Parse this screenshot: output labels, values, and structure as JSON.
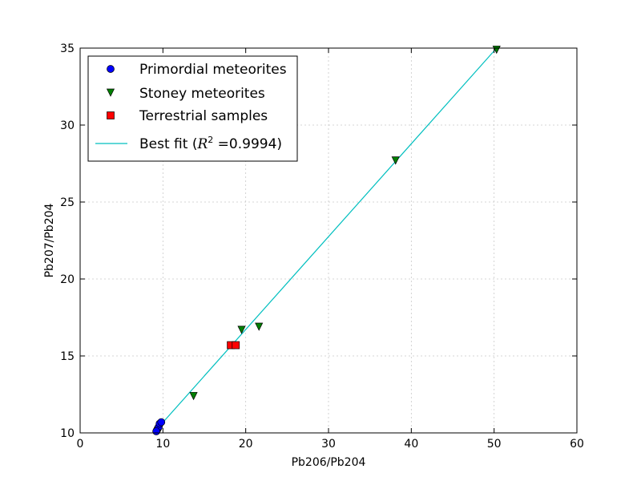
{
  "chart_data": {
    "type": "scatter",
    "xlabel": "Pb206/Pb204",
    "ylabel": "Pb207/Pb204",
    "xlim": [
      0,
      60
    ],
    "ylim": [
      10,
      35
    ],
    "xticks": [
      "0",
      "10",
      "20",
      "30",
      "40",
      "50",
      "60"
    ],
    "yticks": [
      "10",
      "15",
      "20",
      "25",
      "30",
      "35"
    ],
    "grid": true,
    "legend_position": "top-left",
    "series": [
      {
        "name": "Primordial meteorites",
        "marker": "circle",
        "color": "#0000ff",
        "points": [
          [
            9.3,
            10.2
          ],
          [
            9.4,
            10.3
          ],
          [
            9.5,
            10.4
          ],
          [
            9.6,
            10.6
          ],
          [
            9.8,
            10.7
          ],
          [
            9.2,
            10.1
          ]
        ]
      },
      {
        "name": "Stoney meteorites",
        "marker": "triangle-down",
        "color": "#008000",
        "points": [
          [
            13.7,
            12.4
          ],
          [
            19.5,
            16.7
          ],
          [
            21.6,
            16.9
          ],
          [
            38.1,
            27.7
          ],
          [
            50.3,
            34.9
          ]
        ]
      },
      {
        "name": "Terrestrial samples",
        "marker": "square",
        "color": "#ff0000",
        "points": [
          [
            18.2,
            15.7
          ],
          [
            18.8,
            15.7
          ]
        ]
      },
      {
        "name": "Best fit",
        "legend_label_prefix": "Best fit (",
        "legend_label_math": "R",
        "legend_label_sup": "2",
        "legend_label_suffix": " =0.9994)",
        "type": "line",
        "color": "#00bfbf",
        "points": [
          [
            9.2,
            10.2
          ],
          [
            50.3,
            35.0
          ]
        ]
      }
    ]
  }
}
